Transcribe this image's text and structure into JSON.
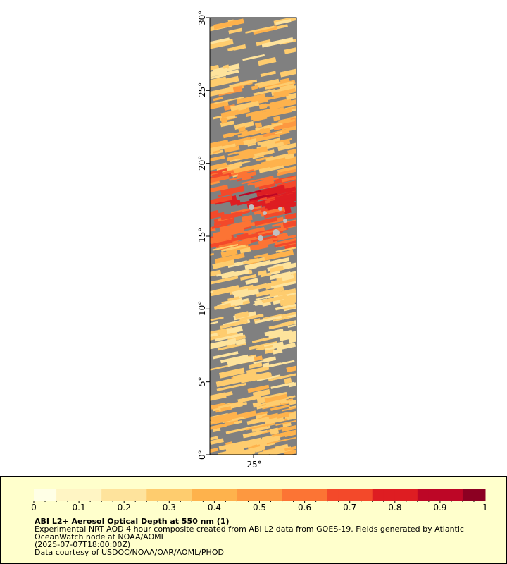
{
  "map": {
    "lat_labels": [
      "0°",
      "5°",
      "10°",
      "15°",
      "20°",
      "25°",
      "30°"
    ],
    "lat_values": [
      0,
      5,
      10,
      15,
      20,
      25,
      30
    ],
    "lon_labels": [
      "-25°"
    ],
    "lat_range": [
      0,
      30
    ],
    "background_color": "#808080",
    "land_color": "#c0c0c0"
  },
  "colorbar": {
    "ticks": [
      "0",
      "0.1",
      "0.2",
      "0.3",
      "0.4",
      "0.5",
      "0.6",
      "0.7",
      "0.8",
      "0.9",
      "1"
    ],
    "tick_values": [
      0,
      0.1,
      0.2,
      0.3,
      0.4,
      0.5,
      0.6,
      0.7,
      0.8,
      0.9,
      1
    ],
    "colors": [
      "#ffffe6",
      "#fff5c4",
      "#fee39c",
      "#fecc6e",
      "#feb24c",
      "#fd9840",
      "#fc7434",
      "#f3492a",
      "#de1d22",
      "#bd0626",
      "#8c0022"
    ]
  },
  "legend": {
    "title": "ABI L2+ Aerosol Optical Depth at 550 nm (1)",
    "line1": "Experimental NRT AOD 4 hour composite created from ABI L2 data from GOES-19. Fields generated by Atlantic",
    "line2": "OceanWatch node at NOAA/AOML",
    "line3": "(2025-07-07T18:00:00Z)",
    "line4": "Data courtesy of USDOC/NOAA/OAR/AOML/PHOD"
  }
}
